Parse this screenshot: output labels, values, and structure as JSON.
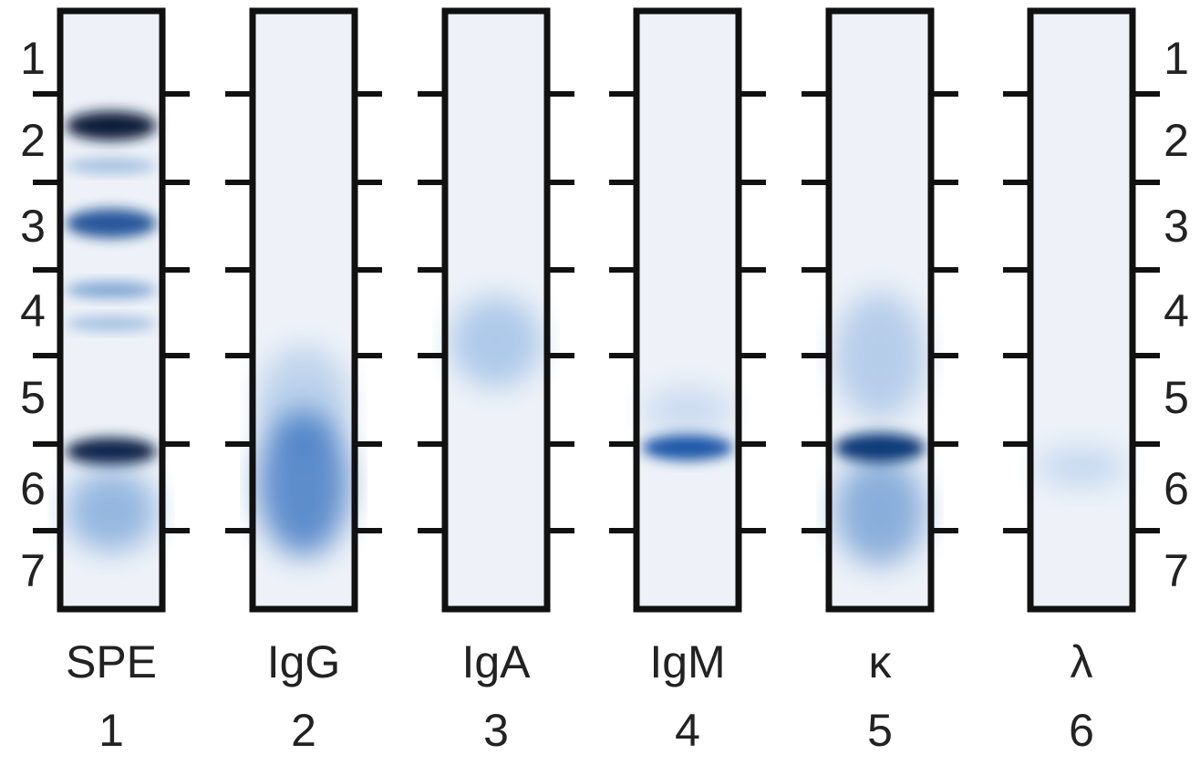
{
  "zones_left": [
    "1",
    "2",
    "3",
    "4",
    "5",
    "6",
    "7"
  ],
  "zones_right": [
    "1",
    "2",
    "3",
    "4",
    "5",
    "6",
    "7"
  ],
  "lanes": [
    {
      "label": "SPE",
      "number": "1"
    },
    {
      "label": "IgG",
      "number": "2"
    },
    {
      "label": "IgA",
      "number": "3"
    },
    {
      "label": "IgM",
      "number": "4"
    },
    {
      "label": "κ",
      "number": "5"
    },
    {
      "label": "λ",
      "number": "6"
    }
  ]
}
